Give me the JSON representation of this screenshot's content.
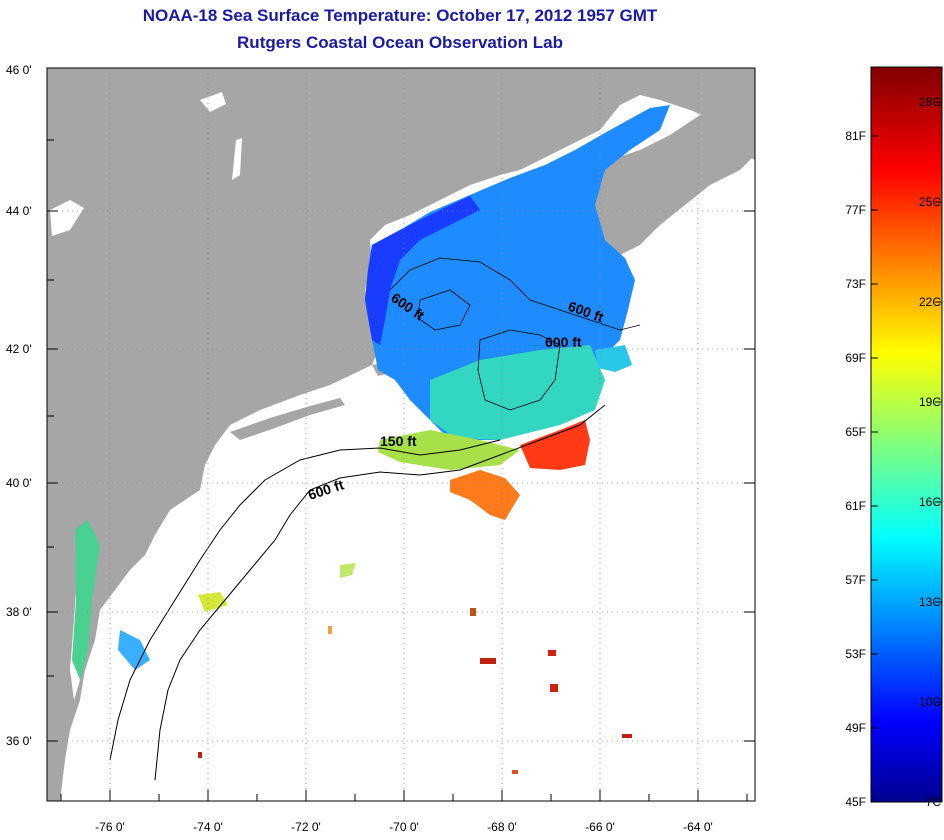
{
  "header": {
    "title": "NOAA-18 Sea Surface Temperature:  October 17, 2012 1957 GMT",
    "subtitle": "Rutgers Coastal Ocean Observation Lab"
  },
  "map": {
    "lon_range": [
      -77,
      -62.5
    ],
    "lat_range": [
      35,
      46
    ],
    "lon_ticks": [
      "-76 0'",
      "-74 0'",
      "-72 0'",
      "-70 0'",
      "-68 0'",
      "-66 0'",
      "-64 0'"
    ],
    "lat_ticks": [
      "36 0'",
      "38 0'",
      "40 0'",
      "42 0'",
      "44 0'",
      "46 0'"
    ],
    "land_color": "#a6a6a6",
    "ocean_color": "#ffffff",
    "contour_labels": [
      "600 ft",
      "600 ft",
      "600 ft",
      "150 ft",
      "600 ft"
    ]
  },
  "colorbar": {
    "fahrenheit_labels": [
      "81F",
      "77F",
      "73F",
      "69F",
      "65F",
      "61F",
      "57F",
      "53F",
      "49F",
      "45F"
    ],
    "celsius_labels": [
      "28C",
      "25C",
      "22C",
      "19C",
      "16C",
      "13C",
      "10C",
      "7C"
    ],
    "range_c": [
      7,
      29.5
    ],
    "colormap": "jet"
  }
}
